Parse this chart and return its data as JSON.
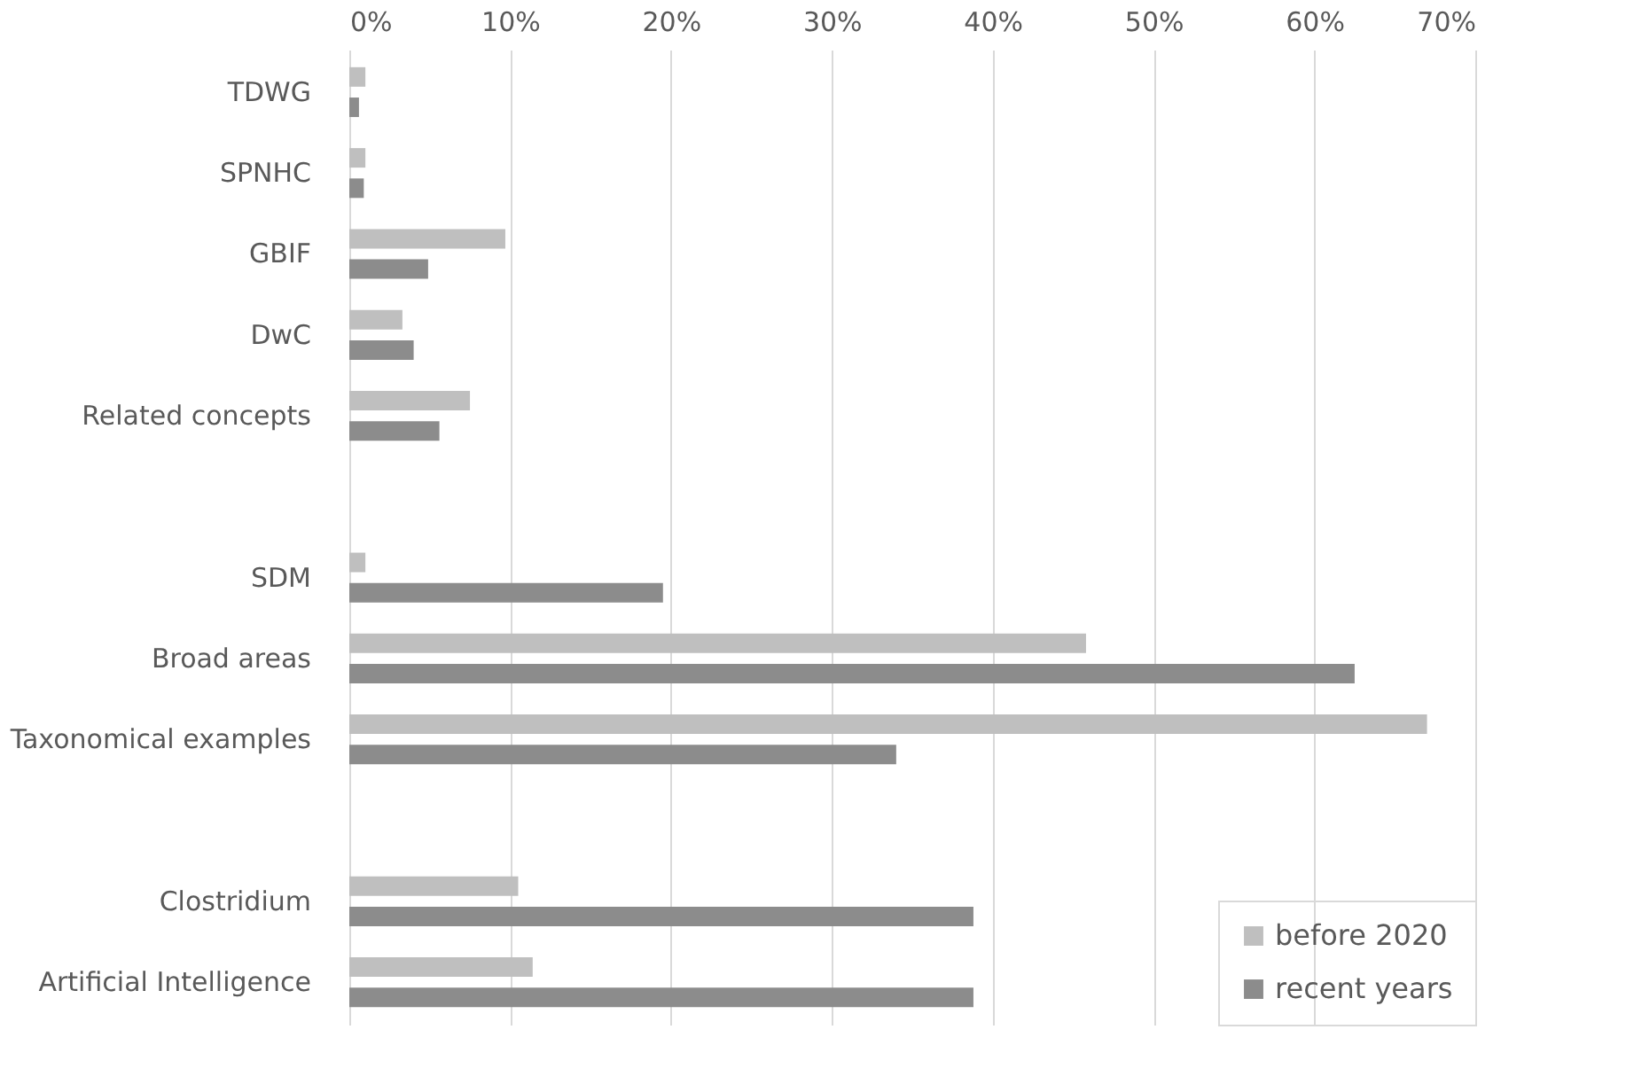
{
  "chart_data": {
    "type": "bar",
    "orientation": "horizontal",
    "categories": [
      "TDWG",
      "SPNHC",
      "GBIF",
      "DwC",
      "Related concepts",
      null,
      "SDM",
      "Broad areas",
      "Taxonomical examples",
      null,
      "Clostridium",
      "Artificial Intelligence"
    ],
    "series": [
      {
        "name": "before 2020",
        "color": "#bfbfbf",
        "values": [
          1.0,
          1.0,
          9.7,
          3.3,
          7.5,
          null,
          1.0,
          45.8,
          67.0,
          null,
          10.5,
          11.4
        ]
      },
      {
        "name": "recent years",
        "color": "#8c8c8c",
        "values": [
          0.6,
          0.9,
          4.9,
          4.0,
          5.6,
          null,
          19.5,
          62.5,
          34.0,
          null,
          38.8,
          38.8
        ]
      }
    ],
    "xlim": [
      0,
      70
    ],
    "xticks": [
      {
        "value": 0,
        "label": "0%"
      },
      {
        "value": 10,
        "label": "10%"
      },
      {
        "value": 20,
        "label": "20%"
      },
      {
        "value": 30,
        "label": "30%"
      },
      {
        "value": 40,
        "label": "40%"
      },
      {
        "value": 50,
        "label": "50%"
      },
      {
        "value": 60,
        "label": "60%"
      },
      {
        "value": 70,
        "label": "70%"
      }
    ],
    "grid": "x",
    "legend": "bottom right"
  }
}
